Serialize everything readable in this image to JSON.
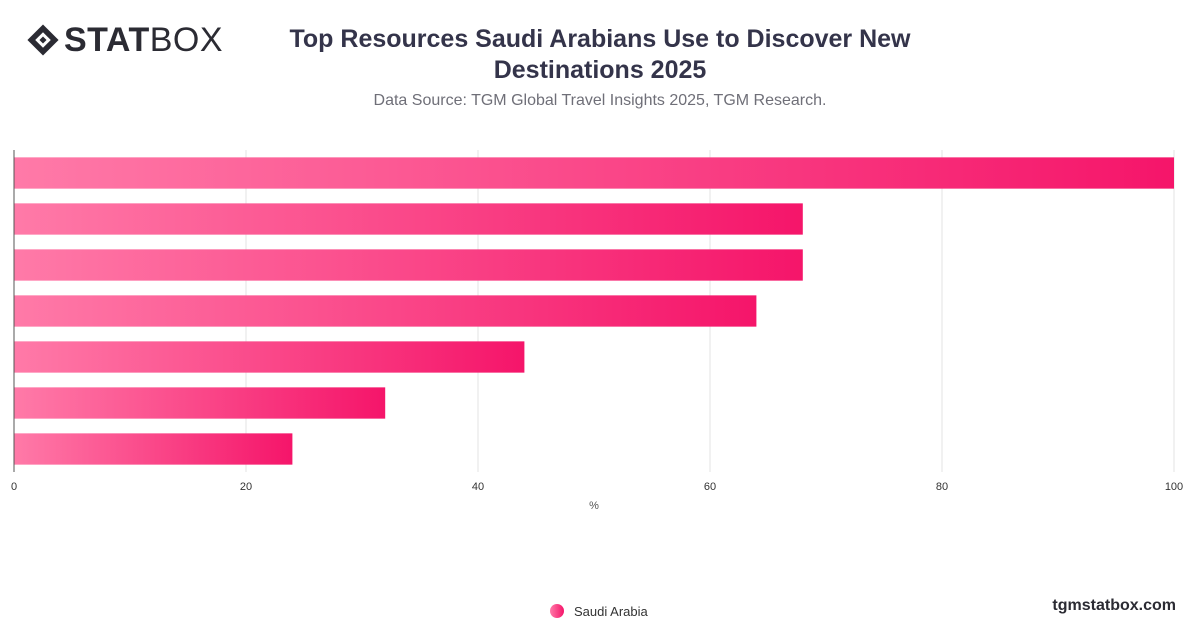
{
  "brand": {
    "logo_strong": "STAT",
    "logo_light": "BOX",
    "footer": "tgmstatbox.com"
  },
  "chart_data": {
    "type": "bar",
    "orientation": "horizontal",
    "title": "Top Resources Saudi Arabians Use to Discover New Destinations 2025",
    "subtitle": "Data Source: TGM Global Travel Insights 2025, TGM Research.",
    "xlabel": "%",
    "ylabel": "",
    "xlim": [
      0,
      100
    ],
    "xticks": [
      0,
      20,
      40,
      60,
      80,
      100
    ],
    "grid": true,
    "legend_position": "bottom-center",
    "series": [
      {
        "name": "Saudi Arabia",
        "values": [
          100,
          68,
          68,
          64,
          44,
          32,
          24
        ]
      }
    ],
    "colors": {
      "bar_start": "#ff7aa8",
      "bar_end": "#f5156a",
      "grid": "#e3e3e3",
      "axis": "#555555",
      "tick_text": "#333333"
    }
  }
}
